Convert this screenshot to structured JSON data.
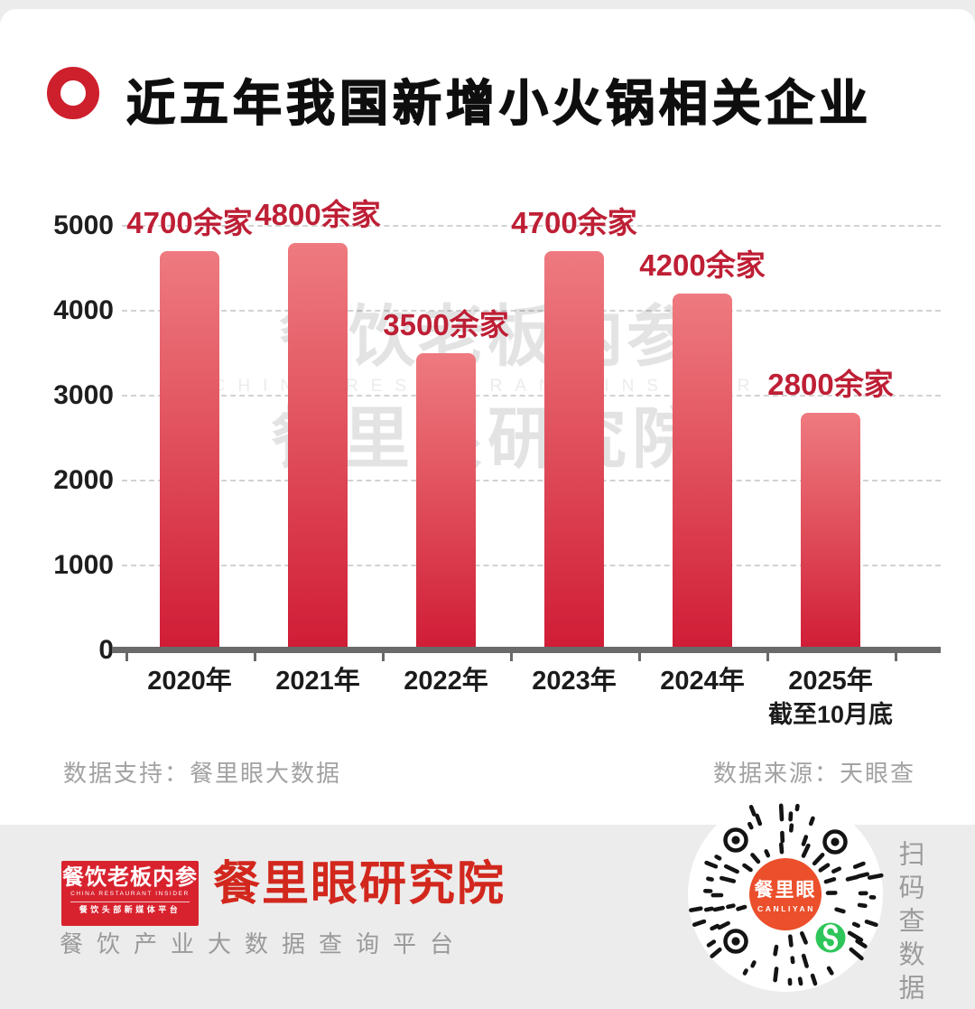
{
  "page": {
    "background": "#ececec",
    "card_background": "#ffffff"
  },
  "header": {
    "title": "近五年我国新增小火锅相关企业",
    "icon": "red-ring-bullet"
  },
  "chart_data": {
    "type": "bar",
    "title": "近五年我国新增小火锅相关企业",
    "categories": [
      "2020年",
      "2021年",
      "2022年",
      "2023年",
      "2024年",
      "2025年"
    ],
    "category_sublabels": [
      "",
      "",
      "",
      "",
      "",
      "截至10月底"
    ],
    "values": [
      4700,
      4800,
      3500,
      4700,
      4200,
      2800
    ],
    "data_labels": [
      "4700余家",
      "4800余家",
      "3500余家",
      "4700余家",
      "4200余家",
      "2800余家"
    ],
    "ylim": [
      0,
      5000
    ],
    "ytick_labels": [
      "5000",
      "4000",
      "3000",
      "2000",
      "1000",
      "0"
    ],
    "grid": "horizontal-dashed",
    "legend": "none",
    "bar_gradient_top": "#EE7A80",
    "bar_gradient_bottom": "#D01C36",
    "data_label_color": "#BE1F35"
  },
  "watermark": {
    "line1": "餐饮老板内参",
    "line2": "CHINA RESTAURANT INSIDER",
    "line3": "餐里眼研究院"
  },
  "sources": {
    "support": "数据支持：餐里眼大数据",
    "origin": "数据来源：天眼查"
  },
  "footer": {
    "logo_badge": {
      "line1": "餐饮老板内参",
      "line2": "CHINA RESTAURANT INSIDER",
      "line3": "餐饮头部新媒体平台",
      "background": "#D8232F"
    },
    "brand_title": "餐里眼研究院",
    "tagline": "餐饮产业大数据查询平台",
    "qr_center_label": "餐里眼",
    "qr_center_sublabel": "CANLIYAN",
    "scan_hint": "扫码查数据"
  },
  "colors": {
    "accent_red": "#CE1F2C",
    "bar_label_red": "#BE1F35",
    "brand_red": "#D2271D",
    "qr_center_orange": "#EB4F2B",
    "wechat_green": "#2EC65A",
    "axis_gray": "#6A6A6A",
    "muted_text": "#A2A2A2"
  }
}
